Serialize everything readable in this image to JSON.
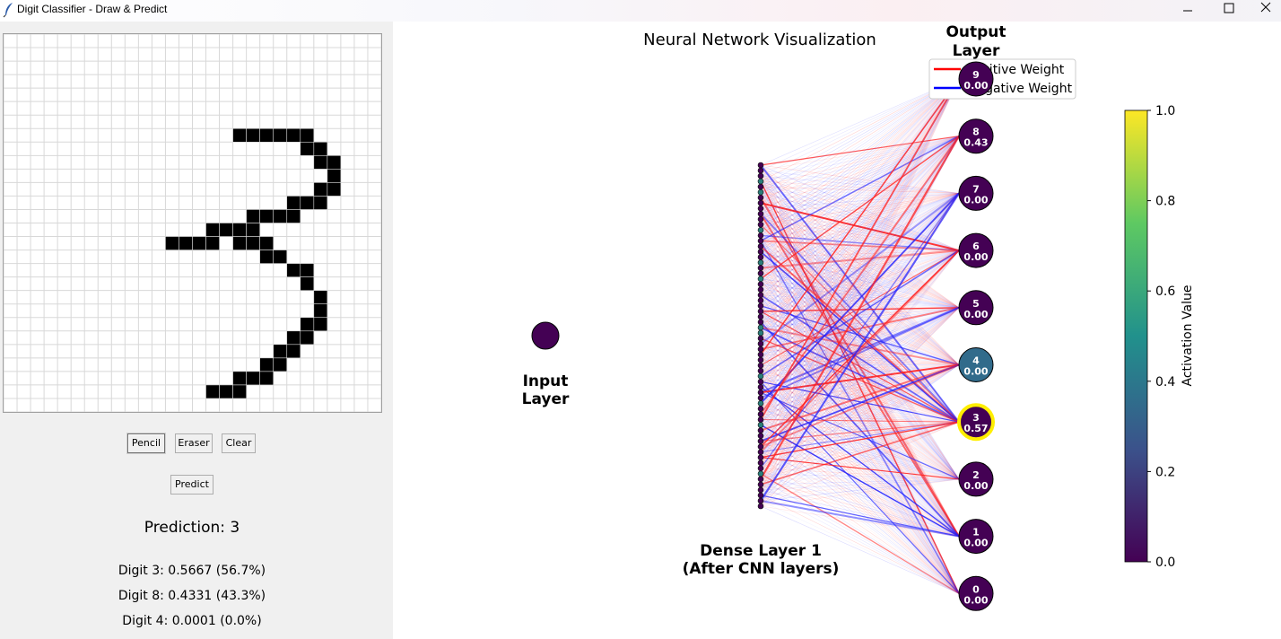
{
  "window": {
    "title": "Digit Classifier - Draw & Predict",
    "app_icon": "feather-icon",
    "controls": [
      "minimize-icon",
      "maximize-icon",
      "close-icon"
    ]
  },
  "drawing": {
    "grid_size": 28,
    "filled_cells": [
      [
        7,
        17
      ],
      [
        7,
        18
      ],
      [
        7,
        19
      ],
      [
        7,
        20
      ],
      [
        7,
        21
      ],
      [
        7,
        22
      ],
      [
        8,
        22
      ],
      [
        8,
        23
      ],
      [
        9,
        23
      ],
      [
        9,
        24
      ],
      [
        10,
        24
      ],
      [
        11,
        23
      ],
      [
        11,
        24
      ],
      [
        12,
        21
      ],
      [
        12,
        22
      ],
      [
        12,
        23
      ],
      [
        13,
        18
      ],
      [
        13,
        19
      ],
      [
        13,
        20
      ],
      [
        13,
        21
      ],
      [
        14,
        15
      ],
      [
        14,
        16
      ],
      [
        14,
        17
      ],
      [
        14,
        18
      ],
      [
        15,
        12
      ],
      [
        15,
        13
      ],
      [
        15,
        14
      ],
      [
        15,
        15
      ],
      [
        15,
        17
      ],
      [
        15,
        18
      ],
      [
        15,
        19
      ],
      [
        16,
        19
      ],
      [
        16,
        20
      ],
      [
        17,
        21
      ],
      [
        17,
        22
      ],
      [
        18,
        22
      ],
      [
        19,
        23
      ],
      [
        20,
        23
      ],
      [
        21,
        22
      ],
      [
        21,
        23
      ],
      [
        22,
        21
      ],
      [
        22,
        22
      ],
      [
        23,
        20
      ],
      [
        23,
        21
      ],
      [
        24,
        19
      ],
      [
        24,
        20
      ],
      [
        25,
        17
      ],
      [
        25,
        18
      ],
      [
        25,
        19
      ],
      [
        26,
        15
      ],
      [
        26,
        16
      ],
      [
        26,
        17
      ]
    ]
  },
  "tools": {
    "pencil": "Pencil",
    "eraser": "Eraser",
    "clear": "Clear",
    "predict": "Predict"
  },
  "prediction": {
    "label": "Prediction: 3",
    "top": [
      "Digit 3: 0.5667 (56.7%)",
      "Digit 8: 0.4331 (43.3%)",
      "Digit 4: 0.0001 (0.0%)"
    ]
  },
  "viz": {
    "title": "Neural Network Visualization",
    "input_label": [
      "Input",
      "Layer"
    ],
    "dense_label": [
      "Dense Layer 1",
      "(After CNN layers)"
    ],
    "output_label": [
      "Output",
      "Layer"
    ],
    "legend": {
      "positive": "Positive Weight",
      "negative": "Negative Weight",
      "positive_color": "#ff0000",
      "negative_color": "#0000ff"
    },
    "output_nodes": [
      {
        "digit": "9",
        "value": "0.00",
        "activation": 0.0
      },
      {
        "digit": "8",
        "value": "0.43",
        "activation": 0.0
      },
      {
        "digit": "7",
        "value": "0.00",
        "activation": 0.0
      },
      {
        "digit": "6",
        "value": "0.00",
        "activation": 0.0
      },
      {
        "digit": "5",
        "value": "0.00",
        "activation": 0.0
      },
      {
        "digit": "4",
        "value": "0.00",
        "activation": 0.35
      },
      {
        "digit": "3",
        "value": "0.57",
        "activation": 0.0,
        "highlighted": true
      },
      {
        "digit": "2",
        "value": "0.00",
        "activation": 0.0
      },
      {
        "digit": "1",
        "value": "0.00",
        "activation": 0.0
      },
      {
        "digit": "0",
        "value": "0.00",
        "activation": 0.0
      }
    ],
    "colorbar": {
      "label": "Activation Value",
      "ticks": [
        "0.0",
        "0.2",
        "0.4",
        "0.6",
        "0.8",
        "1.0"
      ],
      "colormap": [
        "#440154",
        "#3b528b",
        "#21918c",
        "#5ec962",
        "#fde725"
      ]
    }
  }
}
